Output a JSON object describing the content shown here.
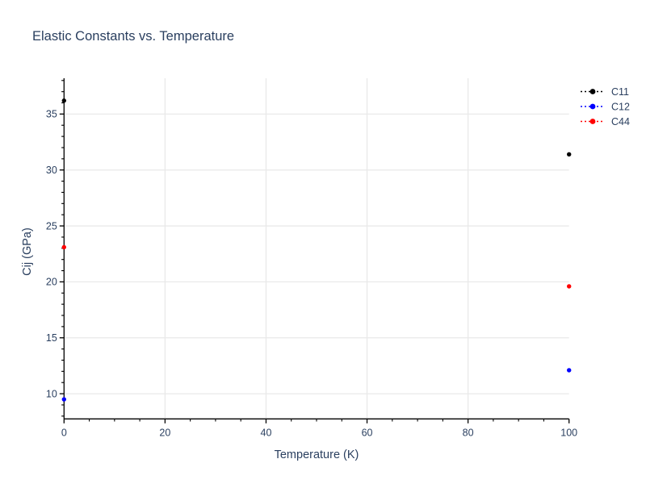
{
  "figure": {
    "title": "Elastic Constants vs. Temperature",
    "x_axis_title": "Temperature (K)",
    "y_axis_title": "Cij (GPa)"
  },
  "colors": {
    "text": "#2a3f5f",
    "grid": "#e9e9e9",
    "axis_line": "#000000",
    "background": "#ffffff",
    "series_c11": "#000000",
    "series_c12": "#0000ff",
    "series_c44": "#ff0000"
  },
  "chart_data": {
    "type": "scatter",
    "title": "Elastic Constants vs. Temperature",
    "xlabel": "Temperature (K)",
    "ylabel": "Cij (GPa)",
    "x": [
      0,
      100
    ],
    "series": [
      {
        "name": "C11",
        "color": "#000000",
        "values": [
          36.2,
          31.4
        ]
      },
      {
        "name": "C12",
        "color": "#0000ff",
        "values": [
          9.5,
          12.1
        ]
      },
      {
        "name": "C44",
        "color": "#ff0000",
        "values": [
          23.1,
          19.6
        ]
      }
    ],
    "xlim": [
      0,
      100
    ],
    "ylim": [
      7.75,
      38.2
    ],
    "x_ticks": [
      0,
      20,
      40,
      60,
      80,
      100
    ],
    "y_ticks": [
      10,
      15,
      20,
      25,
      30,
      35
    ],
    "x_minor_step": 5,
    "y_minor_step": 1,
    "x_gridlines": [
      20,
      40,
      60,
      80
    ],
    "y_gridlines": [
      10,
      15,
      20,
      25,
      30,
      35
    ],
    "grid": true,
    "legend_position": "top-right",
    "line_style": "dotted",
    "marker": "circle",
    "markers_only_in_plot": true
  }
}
